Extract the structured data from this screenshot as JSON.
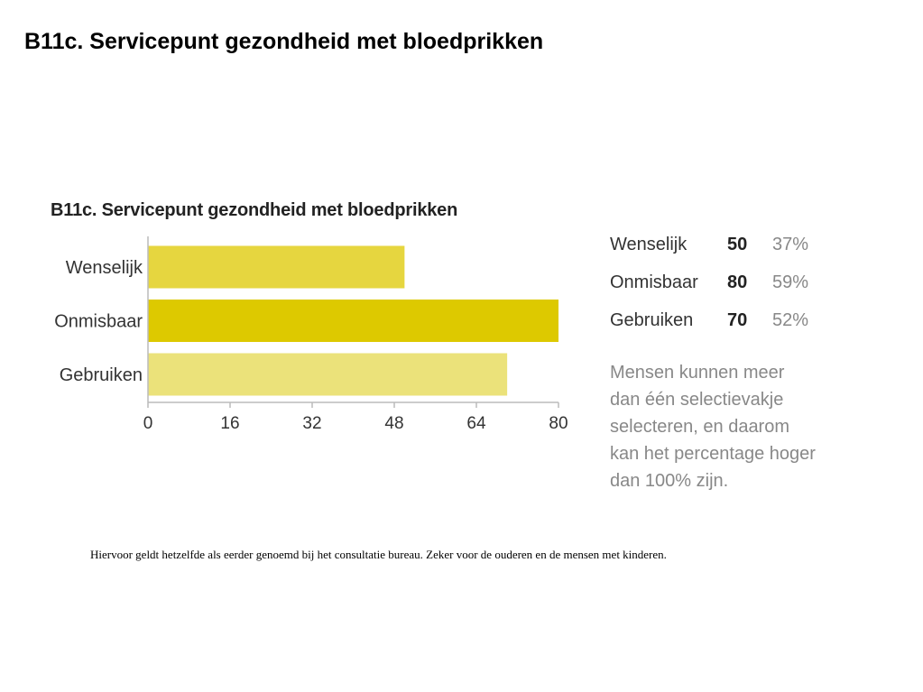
{
  "slide": {
    "title": "B11c. Servicepunt gezondheid met bloedprikken",
    "footnote": "Hiervoor geldt hetzelfde als eerder genoemd bij het consultatie bureau. Zeker voor de ouderen en de mensen met kinderen."
  },
  "chart_data": {
    "type": "bar",
    "orientation": "horizontal",
    "title": "B11c. Servicepunt gezondheid met bloedprikken",
    "categories": [
      "Wenselijk",
      "Onmisbaar",
      "Gebruiken"
    ],
    "values": [
      50,
      80,
      70
    ],
    "colors": [
      "#e6d63f",
      "#ddc900",
      "#ebe27a"
    ],
    "xlim": [
      0,
      80
    ],
    "xticks": [
      0,
      16,
      32,
      48,
      64,
      80
    ],
    "grid": false
  },
  "summary": {
    "rows": [
      {
        "label": "Wenselijk",
        "count": "50",
        "percent": "37%"
      },
      {
        "label": "Onmisbaar",
        "count": "80",
        "percent": "59%"
      },
      {
        "label": "Gebruiken",
        "count": "70",
        "percent": "52%"
      }
    ],
    "note": "Mensen kunnen meer dan één selectievakje selecteren, en daarom kan het percentage hoger dan 100% zijn."
  }
}
